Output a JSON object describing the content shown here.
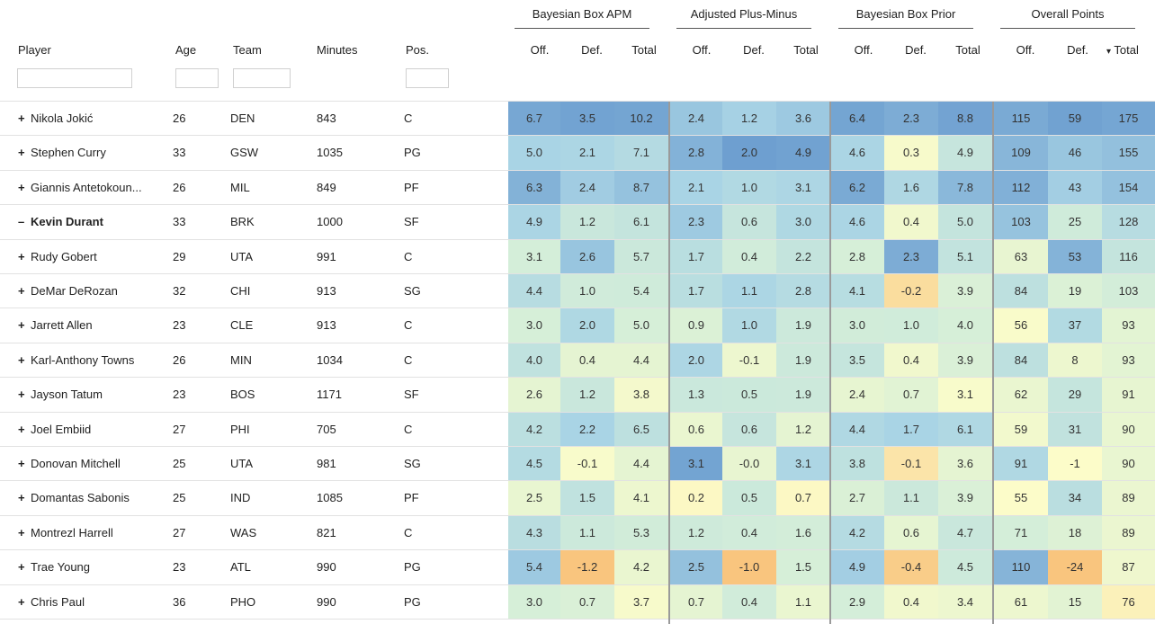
{
  "groups": [
    {
      "label": "Bayesian Box APM"
    },
    {
      "label": "Adjusted Plus-Minus"
    },
    {
      "label": "Bayesian Box Prior"
    },
    {
      "label": "Overall Points"
    }
  ],
  "columns": {
    "player": "Player",
    "age": "Age",
    "team": "Team",
    "minutes": "Minutes",
    "pos": "Pos.",
    "off": "Off.",
    "def": "Def.",
    "total": "Total",
    "total_sorted": "Total",
    "sort_indicator": "▾"
  },
  "rows": [
    {
      "toggle": "+",
      "name": "Nikola Jokić",
      "age": "26",
      "team": "DEN",
      "minutes": "843",
      "pos": "C",
      "values": [
        "6.7",
        "3.5",
        "10.2",
        "2.4",
        "1.2",
        "3.6",
        "6.4",
        "2.3",
        "8.8",
        "115",
        "59",
        "175"
      ]
    },
    {
      "toggle": "+",
      "name": "Stephen Curry",
      "age": "33",
      "team": "GSW",
      "minutes": "1035",
      "pos": "PG",
      "values": [
        "5.0",
        "2.1",
        "7.1",
        "2.8",
        "2.0",
        "4.9",
        "4.6",
        "0.3",
        "4.9",
        "109",
        "46",
        "155"
      ]
    },
    {
      "toggle": "+",
      "name": "Giannis Antetokoun...",
      "age": "26",
      "team": "MIL",
      "minutes": "849",
      "pos": "PF",
      "values": [
        "6.3",
        "2.4",
        "8.7",
        "2.1",
        "1.0",
        "3.1",
        "6.2",
        "1.6",
        "7.8",
        "112",
        "43",
        "154"
      ]
    },
    {
      "toggle": "–",
      "name": "Kevin Durant",
      "bold": true,
      "age": "33",
      "team": "BRK",
      "minutes": "1000",
      "pos": "SF",
      "values": [
        "4.9",
        "1.2",
        "6.1",
        "2.3",
        "0.6",
        "3.0",
        "4.6",
        "0.4",
        "5.0",
        "103",
        "25",
        "128"
      ]
    },
    {
      "toggle": "+",
      "name": "Rudy Gobert",
      "age": "29",
      "team": "UTA",
      "minutes": "991",
      "pos": "C",
      "values": [
        "3.1",
        "2.6",
        "5.7",
        "1.7",
        "0.4",
        "2.2",
        "2.8",
        "2.3",
        "5.1",
        "63",
        "53",
        "116"
      ]
    },
    {
      "toggle": "+",
      "name": "DeMar DeRozan",
      "age": "32",
      "team": "CHI",
      "minutes": "913",
      "pos": "SG",
      "values": [
        "4.4",
        "1.0",
        "5.4",
        "1.7",
        "1.1",
        "2.8",
        "4.1",
        "-0.2",
        "3.9",
        "84",
        "19",
        "103"
      ]
    },
    {
      "toggle": "+",
      "name": "Jarrett Allen",
      "age": "23",
      "team": "CLE",
      "minutes": "913",
      "pos": "C",
      "values": [
        "3.0",
        "2.0",
        "5.0",
        "0.9",
        "1.0",
        "1.9",
        "3.0",
        "1.0",
        "4.0",
        "56",
        "37",
        "93"
      ]
    },
    {
      "toggle": "+",
      "name": "Karl-Anthony Towns",
      "age": "26",
      "team": "MIN",
      "minutes": "1034",
      "pos": "C",
      "values": [
        "4.0",
        "0.4",
        "4.4",
        "2.0",
        "-0.1",
        "1.9",
        "3.5",
        "0.4",
        "3.9",
        "84",
        "8",
        "93"
      ]
    },
    {
      "toggle": "+",
      "name": "Jayson Tatum",
      "age": "23",
      "team": "BOS",
      "minutes": "1171",
      "pos": "SF",
      "values": [
        "2.6",
        "1.2",
        "3.8",
        "1.3",
        "0.5",
        "1.9",
        "2.4",
        "0.7",
        "3.1",
        "62",
        "29",
        "91"
      ]
    },
    {
      "toggle": "+",
      "name": "Joel Embiid",
      "age": "27",
      "team": "PHI",
      "minutes": "705",
      "pos": "C",
      "values": [
        "4.2",
        "2.2",
        "6.5",
        "0.6",
        "0.6",
        "1.2",
        "4.4",
        "1.7",
        "6.1",
        "59",
        "31",
        "90"
      ]
    },
    {
      "toggle": "+",
      "name": "Donovan Mitchell",
      "age": "25",
      "team": "UTA",
      "minutes": "981",
      "pos": "SG",
      "values": [
        "4.5",
        "-0.1",
        "4.4",
        "3.1",
        "-0.0",
        "3.1",
        "3.8",
        "-0.1",
        "3.6",
        "91",
        "-1",
        "90"
      ]
    },
    {
      "toggle": "+",
      "name": "Domantas Sabonis",
      "age": "25",
      "team": "IND",
      "minutes": "1085",
      "pos": "PF",
      "values": [
        "2.5",
        "1.5",
        "4.1",
        "0.2",
        "0.5",
        "0.7",
        "2.7",
        "1.1",
        "3.9",
        "55",
        "34",
        "89"
      ]
    },
    {
      "toggle": "+",
      "name": "Montrezl Harrell",
      "age": "27",
      "team": "WAS",
      "minutes": "821",
      "pos": "C",
      "values": [
        "4.3",
        "1.1",
        "5.3",
        "1.2",
        "0.4",
        "1.6",
        "4.2",
        "0.6",
        "4.7",
        "71",
        "18",
        "89"
      ]
    },
    {
      "toggle": "+",
      "name": "Trae Young",
      "age": "23",
      "team": "ATL",
      "minutes": "990",
      "pos": "PG",
      "values": [
        "5.4",
        "-1.2",
        "4.2",
        "2.5",
        "-1.0",
        "1.5",
        "4.9",
        "-0.4",
        "4.5",
        "110",
        "-24",
        "87"
      ]
    },
    {
      "toggle": "+",
      "name": "Chris Paul",
      "age": "36",
      "team": "PHO",
      "minutes": "990",
      "pos": "PG",
      "values": [
        "3.0",
        "0.7",
        "3.7",
        "0.7",
        "0.4",
        "1.1",
        "2.9",
        "0.4",
        "3.4",
        "61",
        "15",
        "76"
      ]
    }
  ]
}
